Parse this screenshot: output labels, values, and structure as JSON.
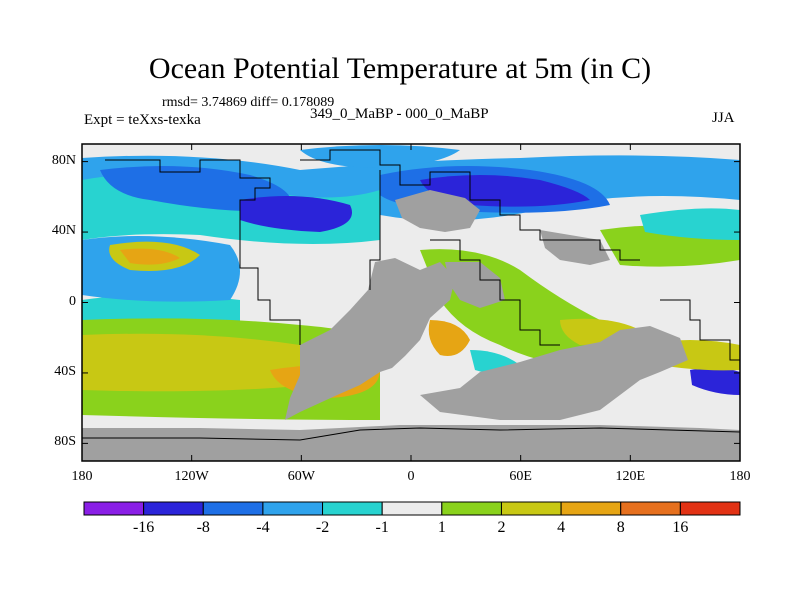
{
  "chart_data": {
    "type": "heatmap",
    "title": "Ocean Potential Temperature at 5m (in C)",
    "stats_text": "rmsd= 3.74869 diff= 0.178089",
    "left_label": "Expt = teXxs-texka",
    "center_label": "349_0_MaBP - 000_0_MaBP",
    "right_label": "JJA",
    "xlim": [
      -180,
      180
    ],
    "ylim": [
      -90,
      90
    ],
    "x_ticks": [
      {
        "value": -180,
        "label": "180"
      },
      {
        "value": -120,
        "label": "120W"
      },
      {
        "value": -60,
        "label": "60W"
      },
      {
        "value": 0,
        "label": "0"
      },
      {
        "value": 60,
        "label": "60E"
      },
      {
        "value": 120,
        "label": "120E"
      },
      {
        "value": 180,
        "label": "180"
      }
    ],
    "y_ticks": [
      {
        "value": 80,
        "label": "80N"
      },
      {
        "value": 40,
        "label": "40N"
      },
      {
        "value": 0,
        "label": "0"
      },
      {
        "value": -40,
        "label": "40S"
      },
      {
        "value": -80,
        "label": "80S"
      }
    ],
    "colorbar": {
      "colors": [
        "#8a1fe6",
        "#2b24d9",
        "#1e6fe6",
        "#2fa3ec",
        "#28d3d0",
        "#ececec",
        "#8ad21c",
        "#c8c814",
        "#e6a514",
        "#e6701e",
        "#e23214"
      ],
      "levels": [
        "-16",
        "-8",
        "-4",
        "-2",
        "-1",
        "1",
        "2",
        "4",
        "8",
        "16"
      ]
    }
  },
  "colors": {
    "land": "#a0a0a0",
    "no_change": "#ececec"
  }
}
